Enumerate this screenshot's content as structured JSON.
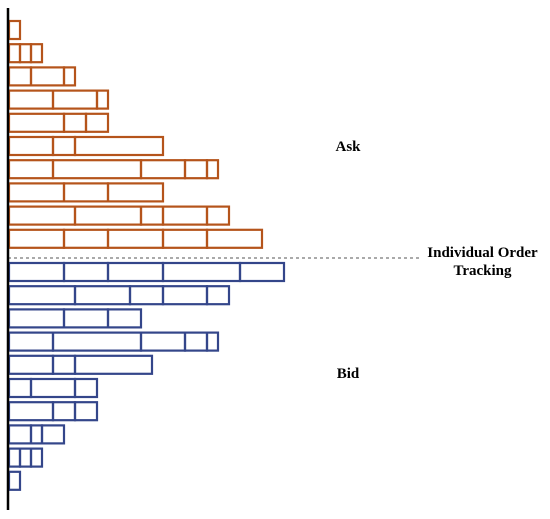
{
  "labels": {
    "ask": "Ask",
    "bid": "Bid",
    "tracking_line1": "Individual Order",
    "tracking_line2": "Tracking"
  },
  "colors": {
    "ask": "#b5541b",
    "bid": "#34468a",
    "axis": "#000000",
    "divider": "#555555"
  },
  "ask_levels": [
    [
      1
    ],
    [
      1,
      1,
      1
    ],
    [
      2,
      3,
      1
    ],
    [
      4,
      4,
      1
    ],
    [
      5,
      2,
      2
    ],
    [
      4,
      2,
      8
    ],
    [
      4,
      8,
      4,
      2,
      1
    ],
    [
      5,
      4,
      5
    ],
    [
      6,
      6,
      2,
      4,
      2
    ],
    [
      5,
      4,
      5,
      4,
      5
    ]
  ],
  "bid_levels": [
    [
      5,
      4,
      5,
      7,
      4
    ],
    [
      6,
      5,
      3,
      4,
      2
    ],
    [
      5,
      4,
      3
    ],
    [
      4,
      8,
      4,
      2,
      1
    ],
    [
      4,
      2,
      7
    ],
    [
      2,
      4,
      2
    ],
    [
      4,
      2,
      2
    ],
    [
      2,
      1,
      2
    ],
    [
      1,
      1,
      1
    ],
    [
      1
    ]
  ]
}
